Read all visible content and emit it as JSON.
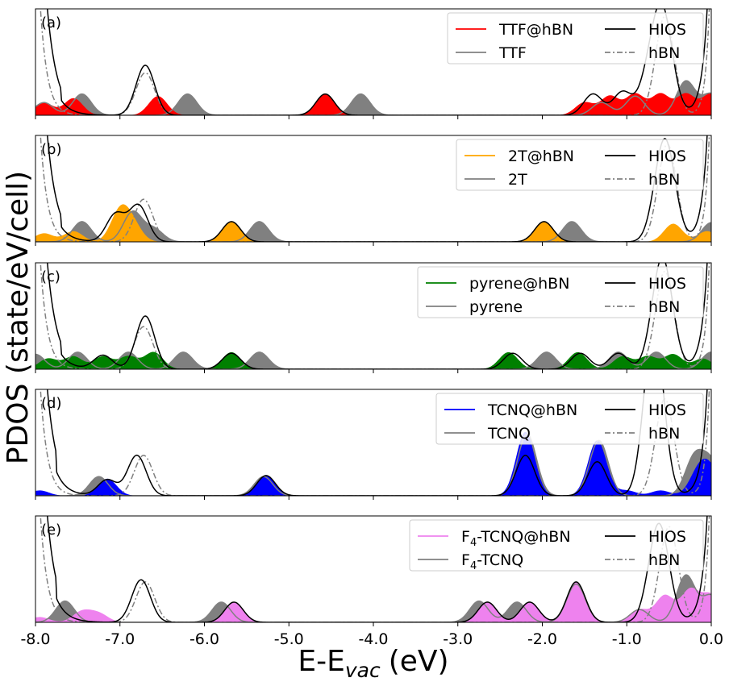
{
  "chart_data": {
    "type": "area",
    "xlabel": "E-E",
    "xlabel_sub": "vac",
    "xlabel_unit": "(eV)",
    "ylabel": "PDOS (state/eV/cell)",
    "xlim": [
      -8.0,
      0.0
    ],
    "xticks": [
      -8.0,
      -7.0,
      -6.0,
      -5.0,
      -4.0,
      -3.0,
      -2.0,
      -1.0,
      0.0
    ],
    "xtick_labels": [
      "-8.0",
      "-7.0",
      "-6.0",
      "-5.0",
      "-4.0",
      "-3.0",
      "-2.0",
      "-1.0",
      "0.0"
    ],
    "sigma": 0.11,
    "ylim": [
      0,
      1.0
    ],
    "panels": [
      {
        "tag": "(a)",
        "molecule": "TTF",
        "legend": [
          "TTF@hBN",
          "TTF",
          "HIOS",
          "hBN"
        ],
        "fill_color": "#ff0000",
        "hios_peaks": [
          [
            -6.7,
            0.47
          ],
          [
            -4.57,
            0.2
          ],
          [
            -1.4,
            0.2
          ],
          [
            -1.05,
            0.22
          ],
          [
            -0.75,
            0.26
          ]
        ],
        "hios_edges": {
          "left_x": -7.7,
          "right_x": -0.08,
          "right_peak_x": -0.58,
          "right_peak_y": 0.97
        },
        "hbn_peaks": [
          [
            -6.7,
            0.4
          ],
          [
            -0.55,
            0.93
          ]
        ],
        "mol_adsorbed": [
          [
            -7.9,
            0.12
          ],
          [
            -7.55,
            0.16
          ],
          [
            -6.55,
            0.18
          ],
          [
            -4.57,
            0.2
          ],
          [
            -1.5,
            0.12
          ],
          [
            -1.2,
            0.18
          ],
          [
            -0.9,
            0.2
          ],
          [
            -0.6,
            0.2
          ],
          [
            -0.3,
            0.2
          ],
          [
            0.0,
            0.2
          ]
        ],
        "mol_free": [
          [
            -7.9,
            0.12
          ],
          [
            -7.45,
            0.2
          ],
          [
            -6.2,
            0.2
          ],
          [
            -4.15,
            0.2
          ],
          [
            -1.3,
            0.12
          ],
          [
            -0.9,
            0.18
          ],
          [
            -0.3,
            0.32
          ],
          [
            0.0,
            0.2
          ]
        ]
      },
      {
        "tag": "(b)",
        "molecule": "2T",
        "legend": [
          "2T@hBN",
          "2T",
          "HIOS",
          "hBN"
        ],
        "fill_color": "#ffa500",
        "hios_peaks": [
          [
            -7.05,
            0.26
          ],
          [
            -6.78,
            0.34
          ],
          [
            -5.68,
            0.19
          ],
          [
            -1.98,
            0.19
          ]
        ],
        "hios_edges": {
          "left_x": -7.7,
          "right_x": -0.08,
          "right_peak_x": -0.55,
          "right_peak_y": 0.97
        },
        "hbn_peaks": [
          [
            -6.72,
            0.4
          ],
          [
            -0.52,
            0.92
          ]
        ],
        "mol_adsorbed": [
          [
            -7.9,
            0.08
          ],
          [
            -7.55,
            0.1
          ],
          [
            -7.0,
            0.28
          ],
          [
            -6.85,
            0.15
          ],
          [
            -5.68,
            0.19
          ],
          [
            -1.98,
            0.19
          ],
          [
            -0.45,
            0.17
          ],
          [
            -0.05,
            0.1
          ]
        ],
        "mol_free": [
          [
            -7.45,
            0.19
          ],
          [
            -6.85,
            0.28
          ],
          [
            -6.6,
            0.12
          ],
          [
            -5.35,
            0.19
          ],
          [
            -1.65,
            0.19
          ],
          [
            0.0,
            0.18
          ]
        ]
      },
      {
        "tag": "(c)",
        "molecule": "pyrene",
        "legend": [
          "pyrene@hBN",
          "pyrene",
          "HIOS",
          "hBN"
        ],
        "fill_color": "#008000",
        "hios_peaks": [
          [
            -7.2,
            0.13
          ],
          [
            -6.7,
            0.5
          ],
          [
            -5.68,
            0.15
          ],
          [
            -2.35,
            0.15
          ],
          [
            -1.55,
            0.15
          ],
          [
            -1.1,
            0.15
          ]
        ],
        "hios_edges": {
          "left_x": -7.7,
          "right_x": -0.1,
          "right_peak_x": -0.58,
          "right_peak_y": 1.05
        },
        "hbn_peaks": [
          [
            -6.72,
            0.4
          ],
          [
            -0.55,
            0.92
          ]
        ],
        "mol_adsorbed": [
          [
            -7.85,
            0.1
          ],
          [
            -7.55,
            0.12
          ],
          [
            -7.2,
            0.12
          ],
          [
            -6.9,
            0.12
          ],
          [
            -6.6,
            0.16
          ],
          [
            -5.68,
            0.16
          ],
          [
            -2.4,
            0.16
          ],
          [
            -1.58,
            0.16
          ],
          [
            -1.05,
            0.12
          ],
          [
            -0.75,
            0.12
          ],
          [
            -0.45,
            0.14
          ],
          [
            -0.1,
            0.1
          ]
        ],
        "mol_free": [
          [
            -8.0,
            0.14
          ],
          [
            -7.5,
            0.16
          ],
          [
            -6.9,
            0.16
          ],
          [
            -6.25,
            0.16
          ],
          [
            -5.35,
            0.16
          ],
          [
            -1.95,
            0.16
          ],
          [
            -1.1,
            0.16
          ],
          [
            -0.65,
            0.16
          ],
          [
            0.0,
            0.16
          ]
        ]
      },
      {
        "tag": "(d)",
        "molecule": "TCNQ",
        "legend": [
          "TCNQ@hBN",
          "TCNQ",
          "HIOS",
          "hBN"
        ],
        "fill_color": "#0000ff",
        "hios_peaks": [
          [
            -7.15,
            0.15
          ],
          [
            -6.8,
            0.38
          ],
          [
            -5.27,
            0.19
          ],
          [
            -2.2,
            0.38
          ],
          [
            -1.35,
            0.32
          ],
          [
            -0.68,
            0.8
          ]
        ],
        "hios_edges": {
          "left_x": -7.75,
          "right_x": -0.05,
          "right_peak_x": -0.68,
          "right_peak_y": 0.8
        },
        "hbn_peaks": [
          [
            -6.72,
            0.38
          ],
          [
            -0.55,
            0.91
          ]
        ],
        "mol_adsorbed": [
          [
            -7.95,
            0.05
          ],
          [
            -7.15,
            0.16
          ],
          [
            -5.27,
            0.19
          ],
          [
            -2.2,
            0.6
          ],
          [
            -1.35,
            0.52
          ],
          [
            -1.0,
            0.05
          ],
          [
            -0.6,
            0.05
          ],
          [
            -0.15,
            0.22
          ],
          [
            0.0,
            0.22
          ]
        ],
        "mol_free": [
          [
            -7.25,
            0.18
          ],
          [
            -5.3,
            0.18
          ],
          [
            -2.18,
            0.58
          ],
          [
            -1.33,
            0.52
          ],
          [
            -0.2,
            0.35
          ],
          [
            0.0,
            0.3
          ]
        ]
      },
      {
        "tag": "(e)",
        "molecule": "F4-TCNQ",
        "legend": [
          "F4-TCNQ@hBN",
          "F4-TCNQ",
          "HIOS",
          "hBN"
        ],
        "fill_color": "#ee82ee",
        "hios_peaks": [
          [
            -6.75,
            0.4
          ],
          [
            -5.65,
            0.19
          ],
          [
            -2.65,
            0.19
          ],
          [
            -2.15,
            0.19
          ],
          [
            -1.6,
            0.38
          ]
        ],
        "hios_edges": {
          "left_x": -7.75,
          "right_x": -0.05,
          "right_peak_x": -0.62,
          "right_peak_y": 0.93
        },
        "hbn_peaks": [
          [
            -6.7,
            0.38
          ],
          [
            -0.5,
            0.9
          ]
        ],
        "mol_adsorbed": [
          [
            -7.95,
            0.05
          ],
          [
            -7.45,
            0.1
          ],
          [
            -7.25,
            0.08
          ],
          [
            -5.65,
            0.19
          ],
          [
            -2.65,
            0.19
          ],
          [
            -2.15,
            0.19
          ],
          [
            -1.6,
            0.38
          ],
          [
            -0.85,
            0.12
          ],
          [
            -0.55,
            0.25
          ],
          [
            -0.25,
            0.3
          ],
          [
            0.0,
            0.25
          ]
        ],
        "mol_free": [
          [
            -7.65,
            0.2
          ],
          [
            -5.8,
            0.19
          ],
          [
            -2.75,
            0.2
          ],
          [
            -2.3,
            0.19
          ],
          [
            -1.6,
            0.36
          ],
          [
            -0.85,
            0.12
          ],
          [
            -0.3,
            0.44
          ],
          [
            0.0,
            0.25
          ]
        ]
      }
    ]
  },
  "colors": {
    "hios": "#000000",
    "hbn": "#808080",
    "free": "#808080",
    "free_fill": "#808080"
  }
}
